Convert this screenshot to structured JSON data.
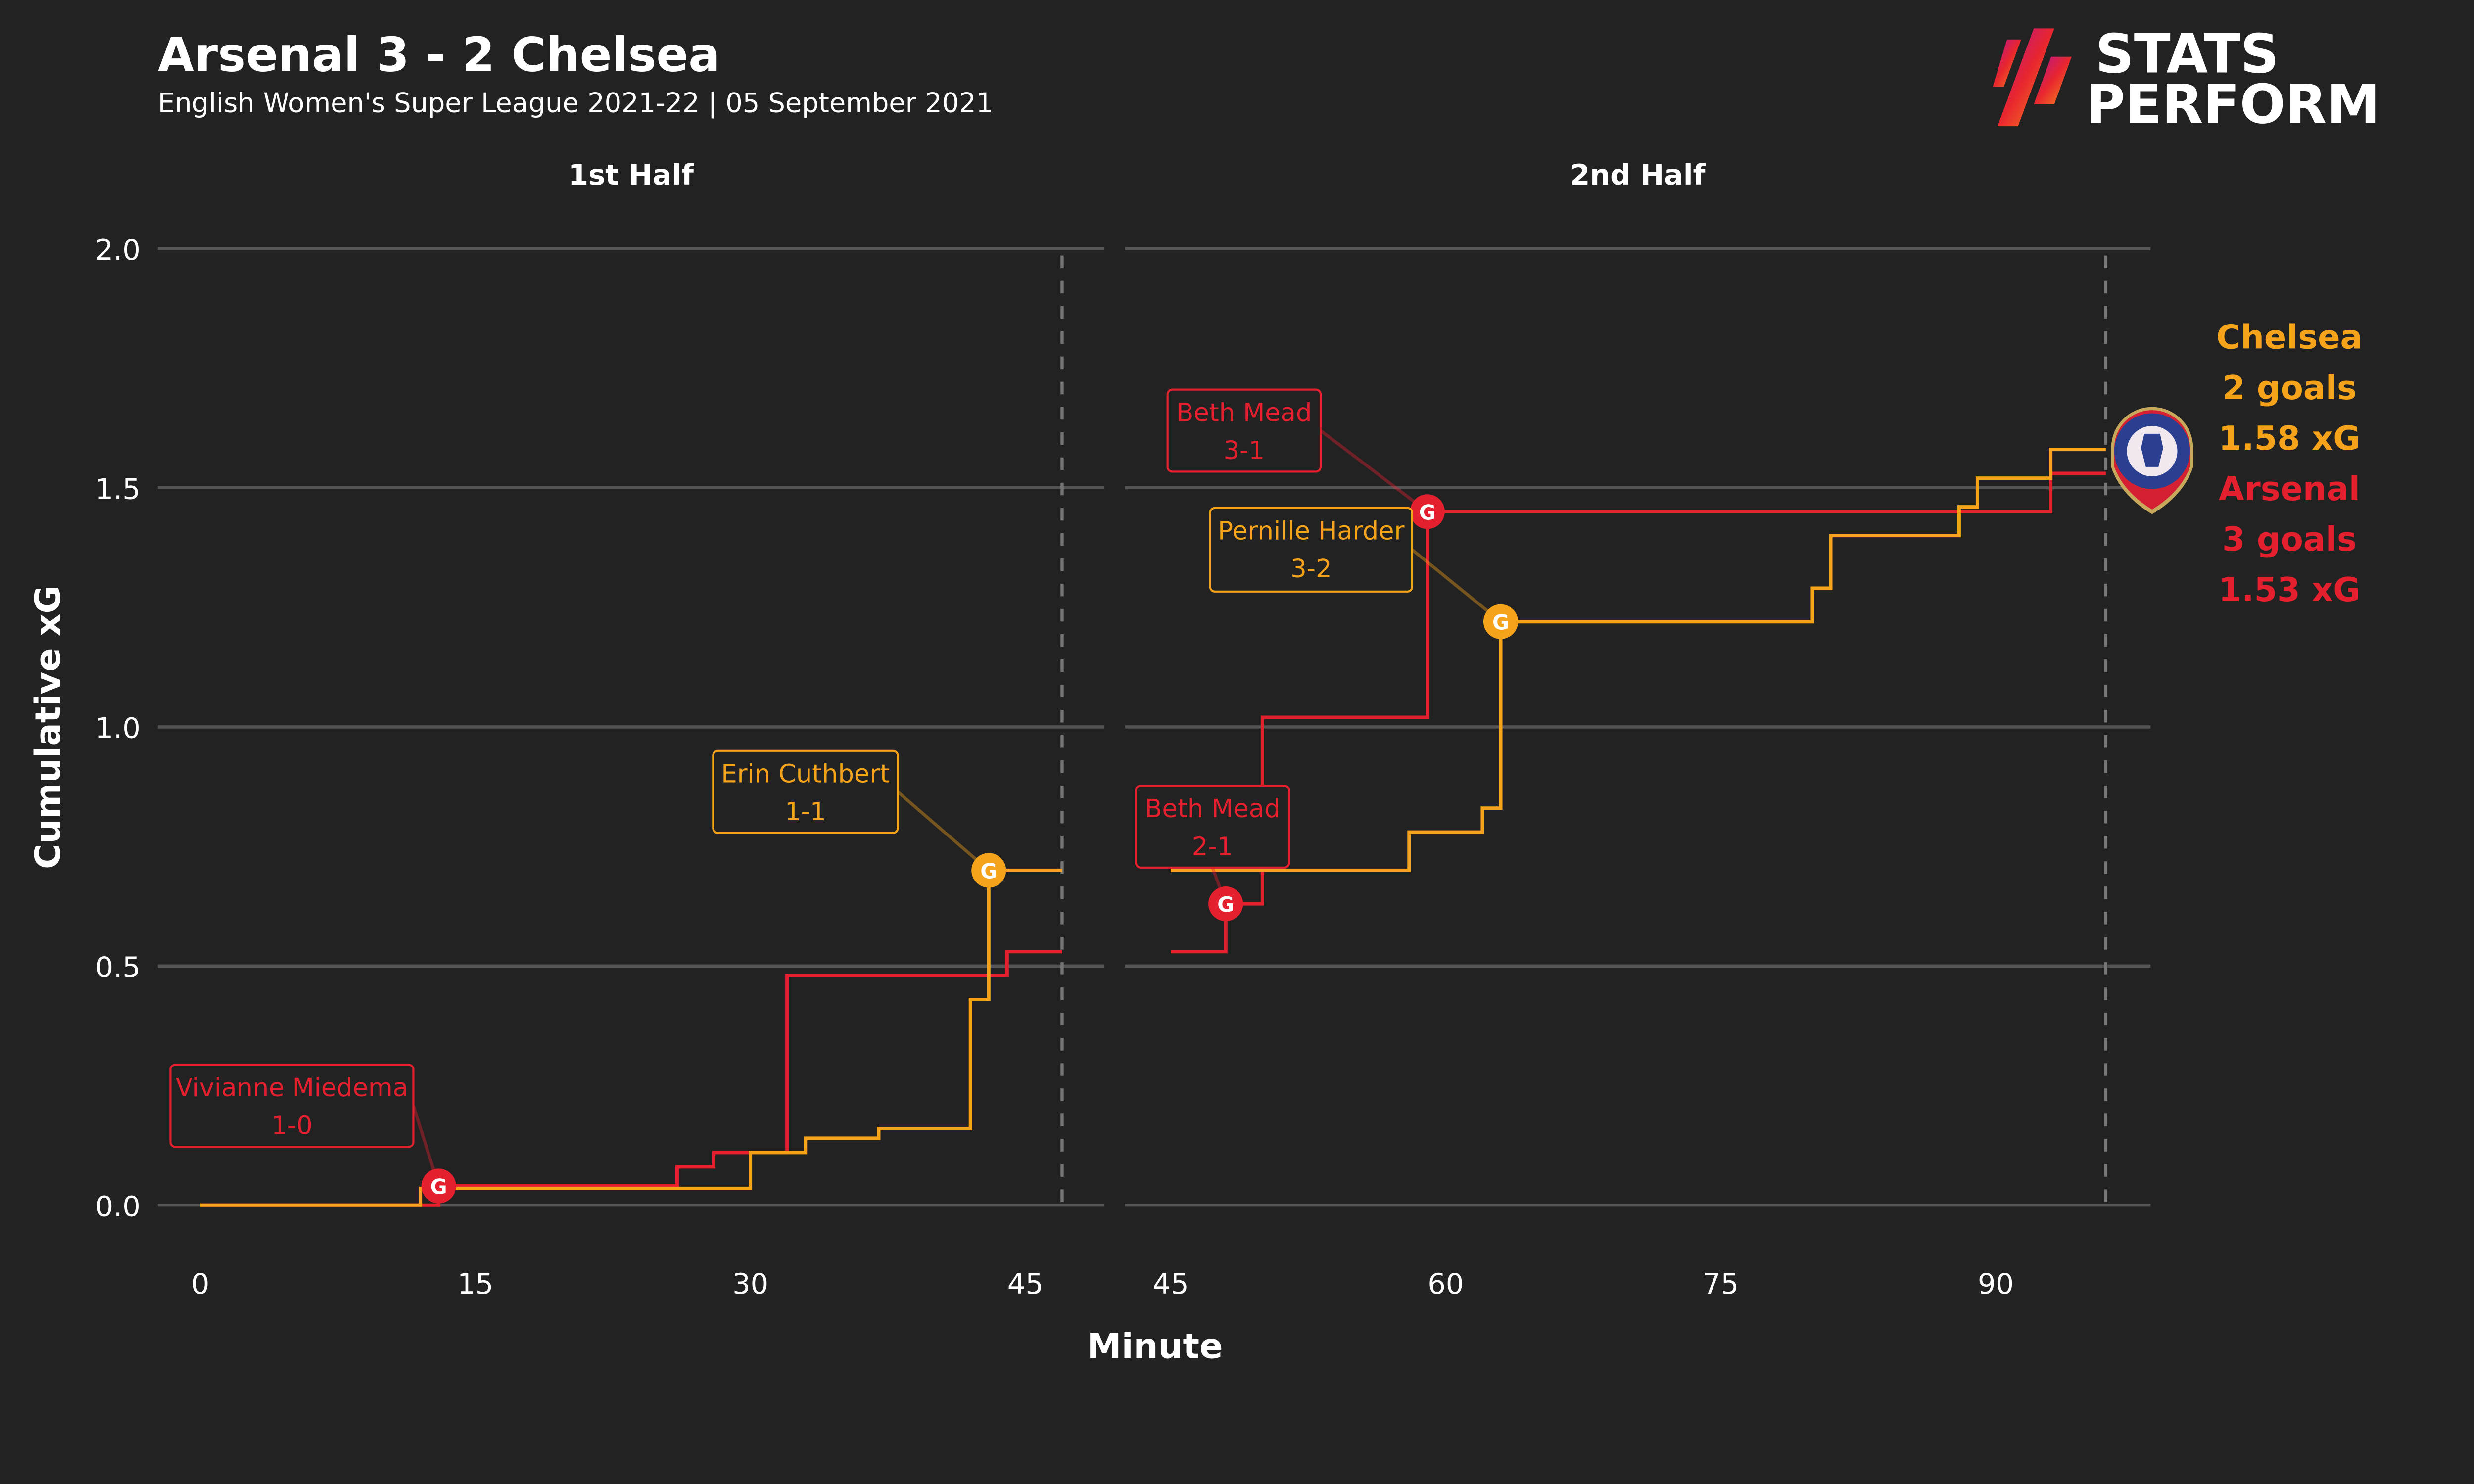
{
  "header": {
    "title": "Arsenal 3 - 2 Chelsea",
    "subtitle": "English Women's Super League 2021-22 | 05 September 2021"
  },
  "logo": {
    "line1": "STATS",
    "line2": "PERFORM"
  },
  "colors": {
    "background": "#222222",
    "arsenal": "#e4202f",
    "chelsea": "#f5a31a",
    "grid": "#555555"
  },
  "crest_icon": "chelsea-fc-crest",
  "chart_data": {
    "type": "line",
    "step": true,
    "ylabel": "Cumulative xG",
    "xlabel": "Minute",
    "ylim": [
      0,
      2.0
    ],
    "yticks": [
      "0.0",
      "0.5",
      "1.0",
      "1.5",
      "2.0"
    ],
    "grid": true,
    "panels": [
      {
        "title": "1st Half",
        "xlim": [
          0,
          47
        ],
        "xticks": [
          "0",
          "15",
          "30",
          "45"
        ],
        "end_minute": 47,
        "series": [
          {
            "team": "Arsenal",
            "color": "#e4202f",
            "steps": [
              [
                0,
                0
              ],
              [
                13,
                0.04
              ],
              [
                26,
                0.08
              ],
              [
                28,
                0.11
              ],
              [
                32,
                0.48
              ],
              [
                44,
                0.53
              ]
            ]
          },
          {
            "team": "Chelsea",
            "color": "#f5a31a",
            "steps": [
              [
                0,
                0
              ],
              [
                12,
                0.035
              ],
              [
                30,
                0.11
              ],
              [
                33,
                0.14
              ],
              [
                37,
                0.16
              ],
              [
                42,
                0.43
              ],
              [
                43,
                0.7
              ]
            ]
          }
        ]
      },
      {
        "title": "2nd Half",
        "xlim": [
          45,
          96
        ],
        "xticks": [
          "45",
          "60",
          "75",
          "90"
        ],
        "end_minute": 96,
        "series": [
          {
            "team": "Arsenal",
            "color": "#e4202f",
            "steps": [
              [
                45,
                0.53
              ],
              [
                48,
                0.63
              ],
              [
                50,
                1.02
              ],
              [
                59,
                1.45
              ],
              [
                93,
                1.53
              ]
            ]
          },
          {
            "team": "Chelsea",
            "color": "#f5a31a",
            "steps": [
              [
                45,
                0.7
              ],
              [
                58,
                0.78
              ],
              [
                62,
                0.83
              ],
              [
                63,
                1.22
              ],
              [
                80,
                1.29
              ],
              [
                81,
                1.4
              ],
              [
                88,
                1.46
              ],
              [
                89,
                1.52
              ],
              [
                93,
                1.58
              ]
            ]
          }
        ]
      }
    ],
    "goal_marker": "G",
    "goals": [
      {
        "panel": 0,
        "team": "Arsenal",
        "minute": 13,
        "xg": 0.04,
        "scorer": "Vivianne Miedema",
        "score": "1-0"
      },
      {
        "panel": 0,
        "team": "Chelsea",
        "minute": 43,
        "xg": 0.7,
        "scorer": "Erin Cuthbert",
        "score": "1-1"
      },
      {
        "panel": 1,
        "team": "Arsenal",
        "minute": 48,
        "xg": 0.63,
        "scorer": "Beth Mead",
        "score": "2-1"
      },
      {
        "panel": 1,
        "team": "Arsenal",
        "minute": 59,
        "xg": 1.45,
        "scorer": "Beth Mead",
        "score": "3-1"
      },
      {
        "panel": 1,
        "team": "Chelsea",
        "minute": 63,
        "xg": 1.22,
        "scorer": "Pernille Harder",
        "score": "3-2"
      }
    ],
    "summary": [
      {
        "team": "Chelsea",
        "goals": "2 goals",
        "xg": "1.58 xG",
        "color": "#f5a31a"
      },
      {
        "team": "Arsenal",
        "goals": "3 goals",
        "xg": "1.53 xG",
        "color": "#e4202f"
      }
    ]
  }
}
